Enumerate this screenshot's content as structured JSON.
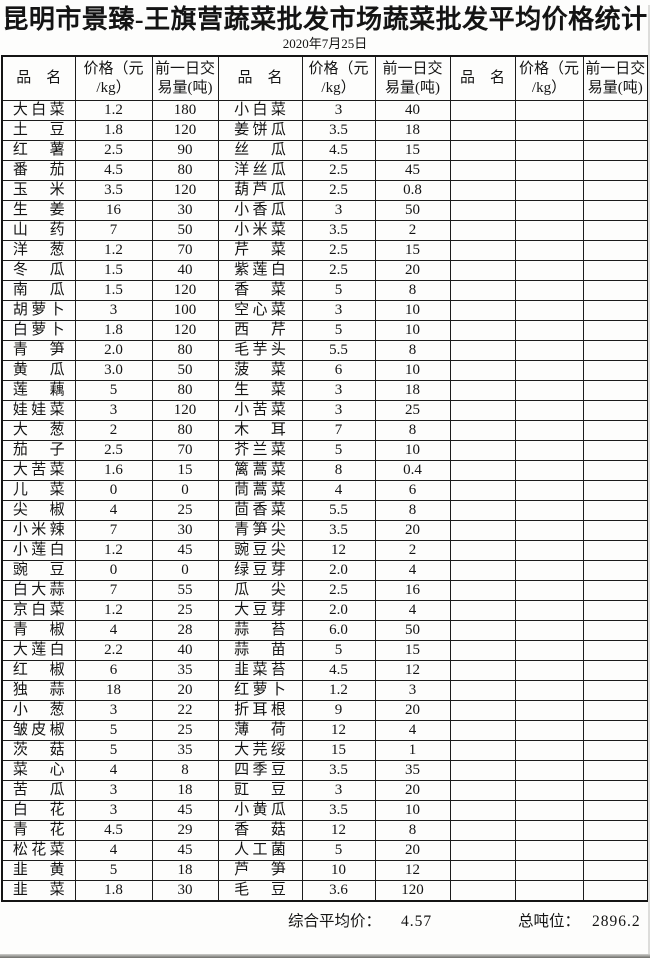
{
  "title": "昆明市景臻-王旗营蔬菜批发市场蔬菜批发平均价格统计",
  "date": "2020年7月25日",
  "table": {
    "headers": {
      "name": "品　名",
      "price": "价格（元\n/kg）",
      "volume": "前一日交\n易量(吨)"
    },
    "group1": {
      "rows": [
        {
          "name": "大白菜",
          "price": "1.2",
          "volume": "180"
        },
        {
          "name": "土豆",
          "price": "1.8",
          "volume": "120"
        },
        {
          "name": "红薯",
          "price": "2.5",
          "volume": "90"
        },
        {
          "name": "番茄",
          "price": "4.5",
          "volume": "80"
        },
        {
          "name": "玉米",
          "price": "3.5",
          "volume": "120"
        },
        {
          "name": "生姜",
          "price": "16",
          "volume": "30"
        },
        {
          "name": "山药",
          "price": "7",
          "volume": "50"
        },
        {
          "name": "洋葱",
          "price": "1.2",
          "volume": "70"
        },
        {
          "name": "冬瓜",
          "price": "1.5",
          "volume": "40"
        },
        {
          "name": "南瓜",
          "price": "1.5",
          "volume": "120"
        },
        {
          "name": "胡萝卜",
          "price": "3",
          "volume": "100"
        },
        {
          "name": "白萝卜",
          "price": "1.8",
          "volume": "120"
        },
        {
          "name": "青笋",
          "price": "2.0",
          "volume": "80"
        },
        {
          "name": "黄瓜",
          "price": "3.0",
          "volume": "50"
        },
        {
          "name": "莲藕",
          "price": "5",
          "volume": "80"
        },
        {
          "name": "娃娃菜",
          "price": "3",
          "volume": "120"
        },
        {
          "name": "大葱",
          "price": "2",
          "volume": "80"
        },
        {
          "name": "茄子",
          "price": "2.5",
          "volume": "70"
        },
        {
          "name": "大苦菜",
          "price": "1.6",
          "volume": "15"
        },
        {
          "name": "儿菜",
          "price": "0",
          "volume": "0"
        },
        {
          "name": "尖椒",
          "price": "4",
          "volume": "25"
        },
        {
          "name": "小米辣",
          "price": "7",
          "volume": "30"
        },
        {
          "name": "小莲白",
          "price": "1.2",
          "volume": "45"
        },
        {
          "name": "豌豆",
          "price": "0",
          "volume": "0"
        },
        {
          "name": "白大蒜",
          "price": "7",
          "volume": "55"
        },
        {
          "name": "京白菜",
          "price": "1.2",
          "volume": "25"
        },
        {
          "name": "青椒",
          "price": "4",
          "volume": "28"
        },
        {
          "name": "大莲白",
          "price": "2.2",
          "volume": "40"
        },
        {
          "name": "红椒",
          "price": "6",
          "volume": "35"
        },
        {
          "name": "独蒜",
          "price": "18",
          "volume": "20"
        },
        {
          "name": "小葱",
          "price": "3",
          "volume": "22"
        },
        {
          "name": "皱皮椒",
          "price": "5",
          "volume": "25"
        },
        {
          "name": "茨菇",
          "price": "5",
          "volume": "35"
        },
        {
          "name": "菜心",
          "price": "4",
          "volume": "8"
        },
        {
          "name": "苦瓜",
          "price": "3",
          "volume": "18"
        },
        {
          "name": "白花",
          "price": "3",
          "volume": "45"
        },
        {
          "name": "青花",
          "price": "4.5",
          "volume": "29"
        },
        {
          "name": "松花菜",
          "price": "4",
          "volume": "45"
        },
        {
          "name": "韭黄",
          "price": "5",
          "volume": "18"
        },
        {
          "name": "韭菜",
          "price": "1.8",
          "volume": "30"
        }
      ]
    },
    "group2": {
      "rows": [
        {
          "name": "小白菜",
          "price": "3",
          "volume": "40"
        },
        {
          "name": "姜饼瓜",
          "price": "3.5",
          "volume": "18"
        },
        {
          "name": "丝瓜",
          "price": "4.5",
          "volume": "15"
        },
        {
          "name": "洋丝瓜",
          "price": "2.5",
          "volume": "45"
        },
        {
          "name": "葫芦瓜",
          "price": "2.5",
          "volume": "0.8"
        },
        {
          "name": "小香瓜",
          "price": "3",
          "volume": "50"
        },
        {
          "name": "小米菜",
          "price": "3.5",
          "volume": "2"
        },
        {
          "name": "芹菜",
          "price": "2.5",
          "volume": "15"
        },
        {
          "name": "紫莲白",
          "price": "2.5",
          "volume": "20"
        },
        {
          "name": "香菜",
          "price": "5",
          "volume": "8"
        },
        {
          "name": "空心菜",
          "price": "3",
          "volume": "10"
        },
        {
          "name": "西芹",
          "price": "5",
          "volume": "10"
        },
        {
          "name": "毛芋头",
          "price": "5.5",
          "volume": "8"
        },
        {
          "name": "菠菜",
          "price": "6",
          "volume": "10"
        },
        {
          "name": "生菜",
          "price": "3",
          "volume": "18"
        },
        {
          "name": "小苦菜",
          "price": "3",
          "volume": "25"
        },
        {
          "name": "木耳",
          "price": "7",
          "volume": "8"
        },
        {
          "name": "芥兰菜",
          "price": "5",
          "volume": "10"
        },
        {
          "name": "篱蒿菜",
          "price": "8",
          "volume": "0.4"
        },
        {
          "name": "茼蒿菜",
          "price": "4",
          "volume": "6"
        },
        {
          "name": "茴香菜",
          "price": "5.5",
          "volume": "8"
        },
        {
          "name": "青笋尖",
          "price": "3.5",
          "volume": "20"
        },
        {
          "name": "豌豆尖",
          "price": "12",
          "volume": "2"
        },
        {
          "name": "绿豆芽",
          "price": "2.0",
          "volume": "4"
        },
        {
          "name": "瓜尖",
          "price": "2.5",
          "volume": "16"
        },
        {
          "name": "大豆芽",
          "price": "2.0",
          "volume": "4"
        },
        {
          "name": "蒜苔",
          "price": "6.0",
          "volume": "50"
        },
        {
          "name": "蒜苗",
          "price": "5",
          "volume": "15"
        },
        {
          "name": "韭菜苔",
          "price": "4.5",
          "volume": "12"
        },
        {
          "name": "红萝卜",
          "price": "1.2",
          "volume": "3"
        },
        {
          "name": "折耳根",
          "price": "9",
          "volume": "20"
        },
        {
          "name": "薄荷",
          "price": "12",
          "volume": "4"
        },
        {
          "name": "大芫绥",
          "price": "15",
          "volume": "1"
        },
        {
          "name": "四季豆",
          "price": "3.5",
          "volume": "35"
        },
        {
          "name": "豇豆",
          "price": "3",
          "volume": "20"
        },
        {
          "name": "小黄瓜",
          "price": "3.5",
          "volume": "10"
        },
        {
          "name": "香菇",
          "price": "12",
          "volume": "8"
        },
        {
          "name": "人工菌",
          "price": "5",
          "volume": "20"
        },
        {
          "name": "芦笋",
          "price": "10",
          "volume": "12"
        },
        {
          "name": "毛豆",
          "price": "3.6",
          "volume": "120"
        }
      ]
    },
    "group3": {
      "rows": []
    }
  },
  "footer": {
    "avg_label": "综合平均价：",
    "avg_value": "4.57",
    "total_label": "总吨位：",
    "total_value": "2896.2"
  }
}
